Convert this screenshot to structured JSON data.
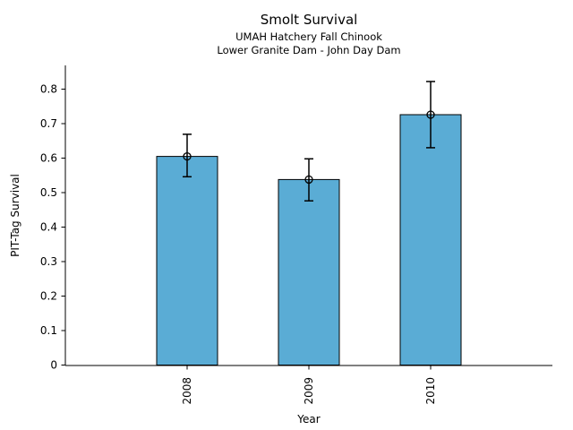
{
  "chart_data": {
    "type": "bar",
    "title": "Smolt Survival",
    "subtitle": [
      "UMAH Hatchery Fall Chinook",
      "Lower Granite Dam - John Day Dam"
    ],
    "xlabel": "Year",
    "ylabel": "PIT-Tag Survival",
    "categories": [
      "2008",
      "2009",
      "2010"
    ],
    "values": [
      0.605,
      0.538,
      0.726
    ],
    "error_low": [
      0.546,
      0.476,
      0.63
    ],
    "error_high": [
      0.669,
      0.598,
      0.822
    ],
    "ytick_values": [
      0,
      0.1,
      0.2,
      0.3,
      0.4,
      0.5,
      0.6,
      0.7,
      0.8
    ],
    "ytick_labels": [
      "0",
      "0.1",
      "0.2",
      "0.3",
      "0.4",
      "0.5",
      "0.6",
      "0.7",
      "0.8"
    ],
    "ylim": [
      0,
      0.87
    ],
    "grid": false,
    "legend": false,
    "bar_color": "#5AACD5",
    "bar_edge_color": "#000000",
    "error_color": "#000000",
    "background": "#FFFFFF"
  }
}
